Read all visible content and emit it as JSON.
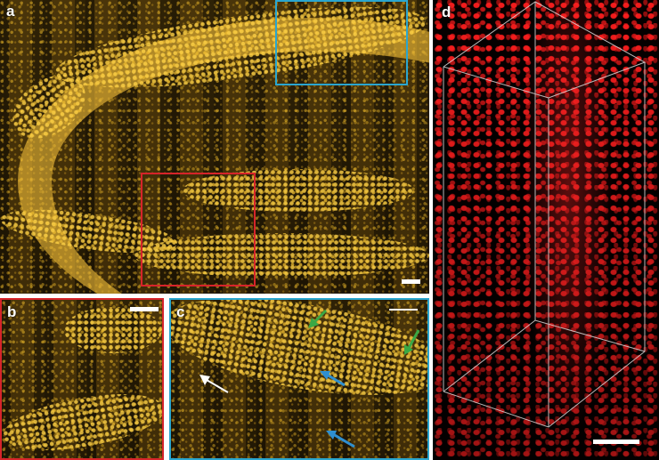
{
  "panels": {
    "a": {
      "label": "a"
    },
    "b": {
      "label": "b"
    },
    "c": {
      "label": "c"
    },
    "d": {
      "label": "d"
    }
  },
  "colors": {
    "inset_b_border": "#d6242a",
    "inset_c_border": "#2aa6cf",
    "arrow_green": "#3aa845",
    "arrow_blue": "#2f8fd0",
    "arrow_white": "#ffffff",
    "scale_bar": "#ffffff",
    "cube_edges": "#d9d9d9"
  },
  "icons": {
    "arrows_c": [
      "green-arrow-icon",
      "green-arrow-icon",
      "blue-arrow-icon",
      "blue-arrow-icon",
      "white-arrow-icon"
    ]
  }
}
